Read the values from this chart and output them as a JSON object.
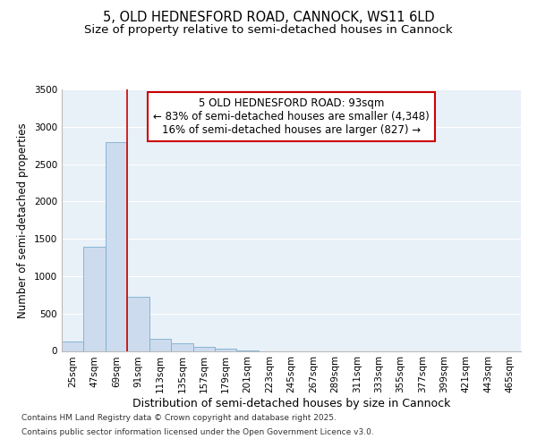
{
  "title_line1": "5, OLD HEDNESFORD ROAD, CANNOCK, WS11 6LD",
  "title_line2": "Size of property relative to semi-detached houses in Cannock",
  "xlabel": "Distribution of semi-detached houses by size in Cannock",
  "ylabel": "Number of semi-detached properties",
  "bar_color": "#ccdcee",
  "bar_edge_color": "#7aadd0",
  "bg_color": "#e8f0f8",
  "grid_color": "#ffffff",
  "categories": [
    "25sqm",
    "47sqm",
    "69sqm",
    "91sqm",
    "113sqm",
    "135sqm",
    "157sqm",
    "179sqm",
    "201sqm",
    "223sqm",
    "245sqm",
    "267sqm",
    "289sqm",
    "311sqm",
    "333sqm",
    "355sqm",
    "377sqm",
    "399sqm",
    "421sqm",
    "443sqm",
    "465sqm"
  ],
  "values": [
    130,
    1390,
    2800,
    720,
    160,
    100,
    55,
    30,
    5,
    0,
    0,
    0,
    0,
    0,
    0,
    0,
    0,
    0,
    0,
    0,
    0
  ],
  "ylim": [
    0,
    3500
  ],
  "yticks": [
    0,
    500,
    1000,
    1500,
    2000,
    2500,
    3000,
    3500
  ],
  "vline_x_index": 3,
  "annotation_line1": "5 OLD HEDNESFORD ROAD: 93sqm",
  "annotation_line2": "← 83% of semi-detached houses are smaller (4,348)",
  "annotation_line3": "16% of semi-detached houses are larger (827) →",
  "annotation_box_color": "#ffffff",
  "annotation_border_color": "#cc0000",
  "vline_color": "#cc0000",
  "footer_line1": "Contains HM Land Registry data © Crown copyright and database right 2025.",
  "footer_line2": "Contains public sector information licensed under the Open Government Licence v3.0.",
  "title_fontsize": 10.5,
  "subtitle_fontsize": 9.5,
  "tick_fontsize": 7.5,
  "ylabel_fontsize": 8.5,
  "xlabel_fontsize": 9,
  "annot_fontsize": 8.5,
  "footer_fontsize": 6.5
}
